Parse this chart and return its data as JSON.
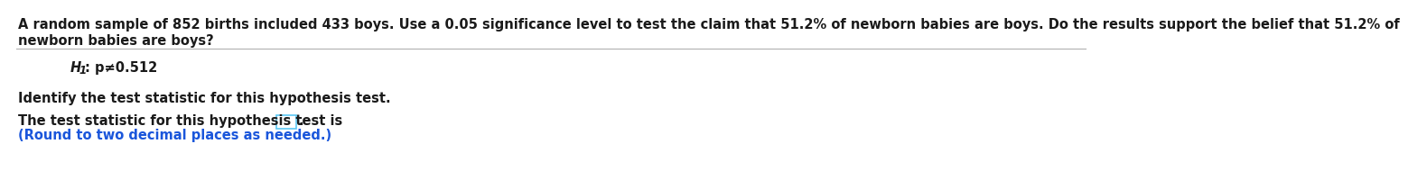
{
  "bg_color": "#ffffff",
  "line1": "A random sample of 852 births included 433 boys. Use a 0.05 significance level to test the claim that 51.2% of newborn babies are boys. Do the results support the belief that 51.2% of",
  "line2": "newborn babies are boys?",
  "h1_rest": ": p≠0.512",
  "identify_text": "Identify the test statistic for this hypothesis test.",
  "result_text_before": "The test statistic for this hypothesis test is",
  "result_text_after": ".",
  "round_text": "(Round to two decimal places as needed.)",
  "round_color": "#1a56db",
  "text_color": "#1a1a1a",
  "separator_color": "#b0b0b0",
  "box_edge_color": "#5bc8f5",
  "main_fontsize": 10.5
}
